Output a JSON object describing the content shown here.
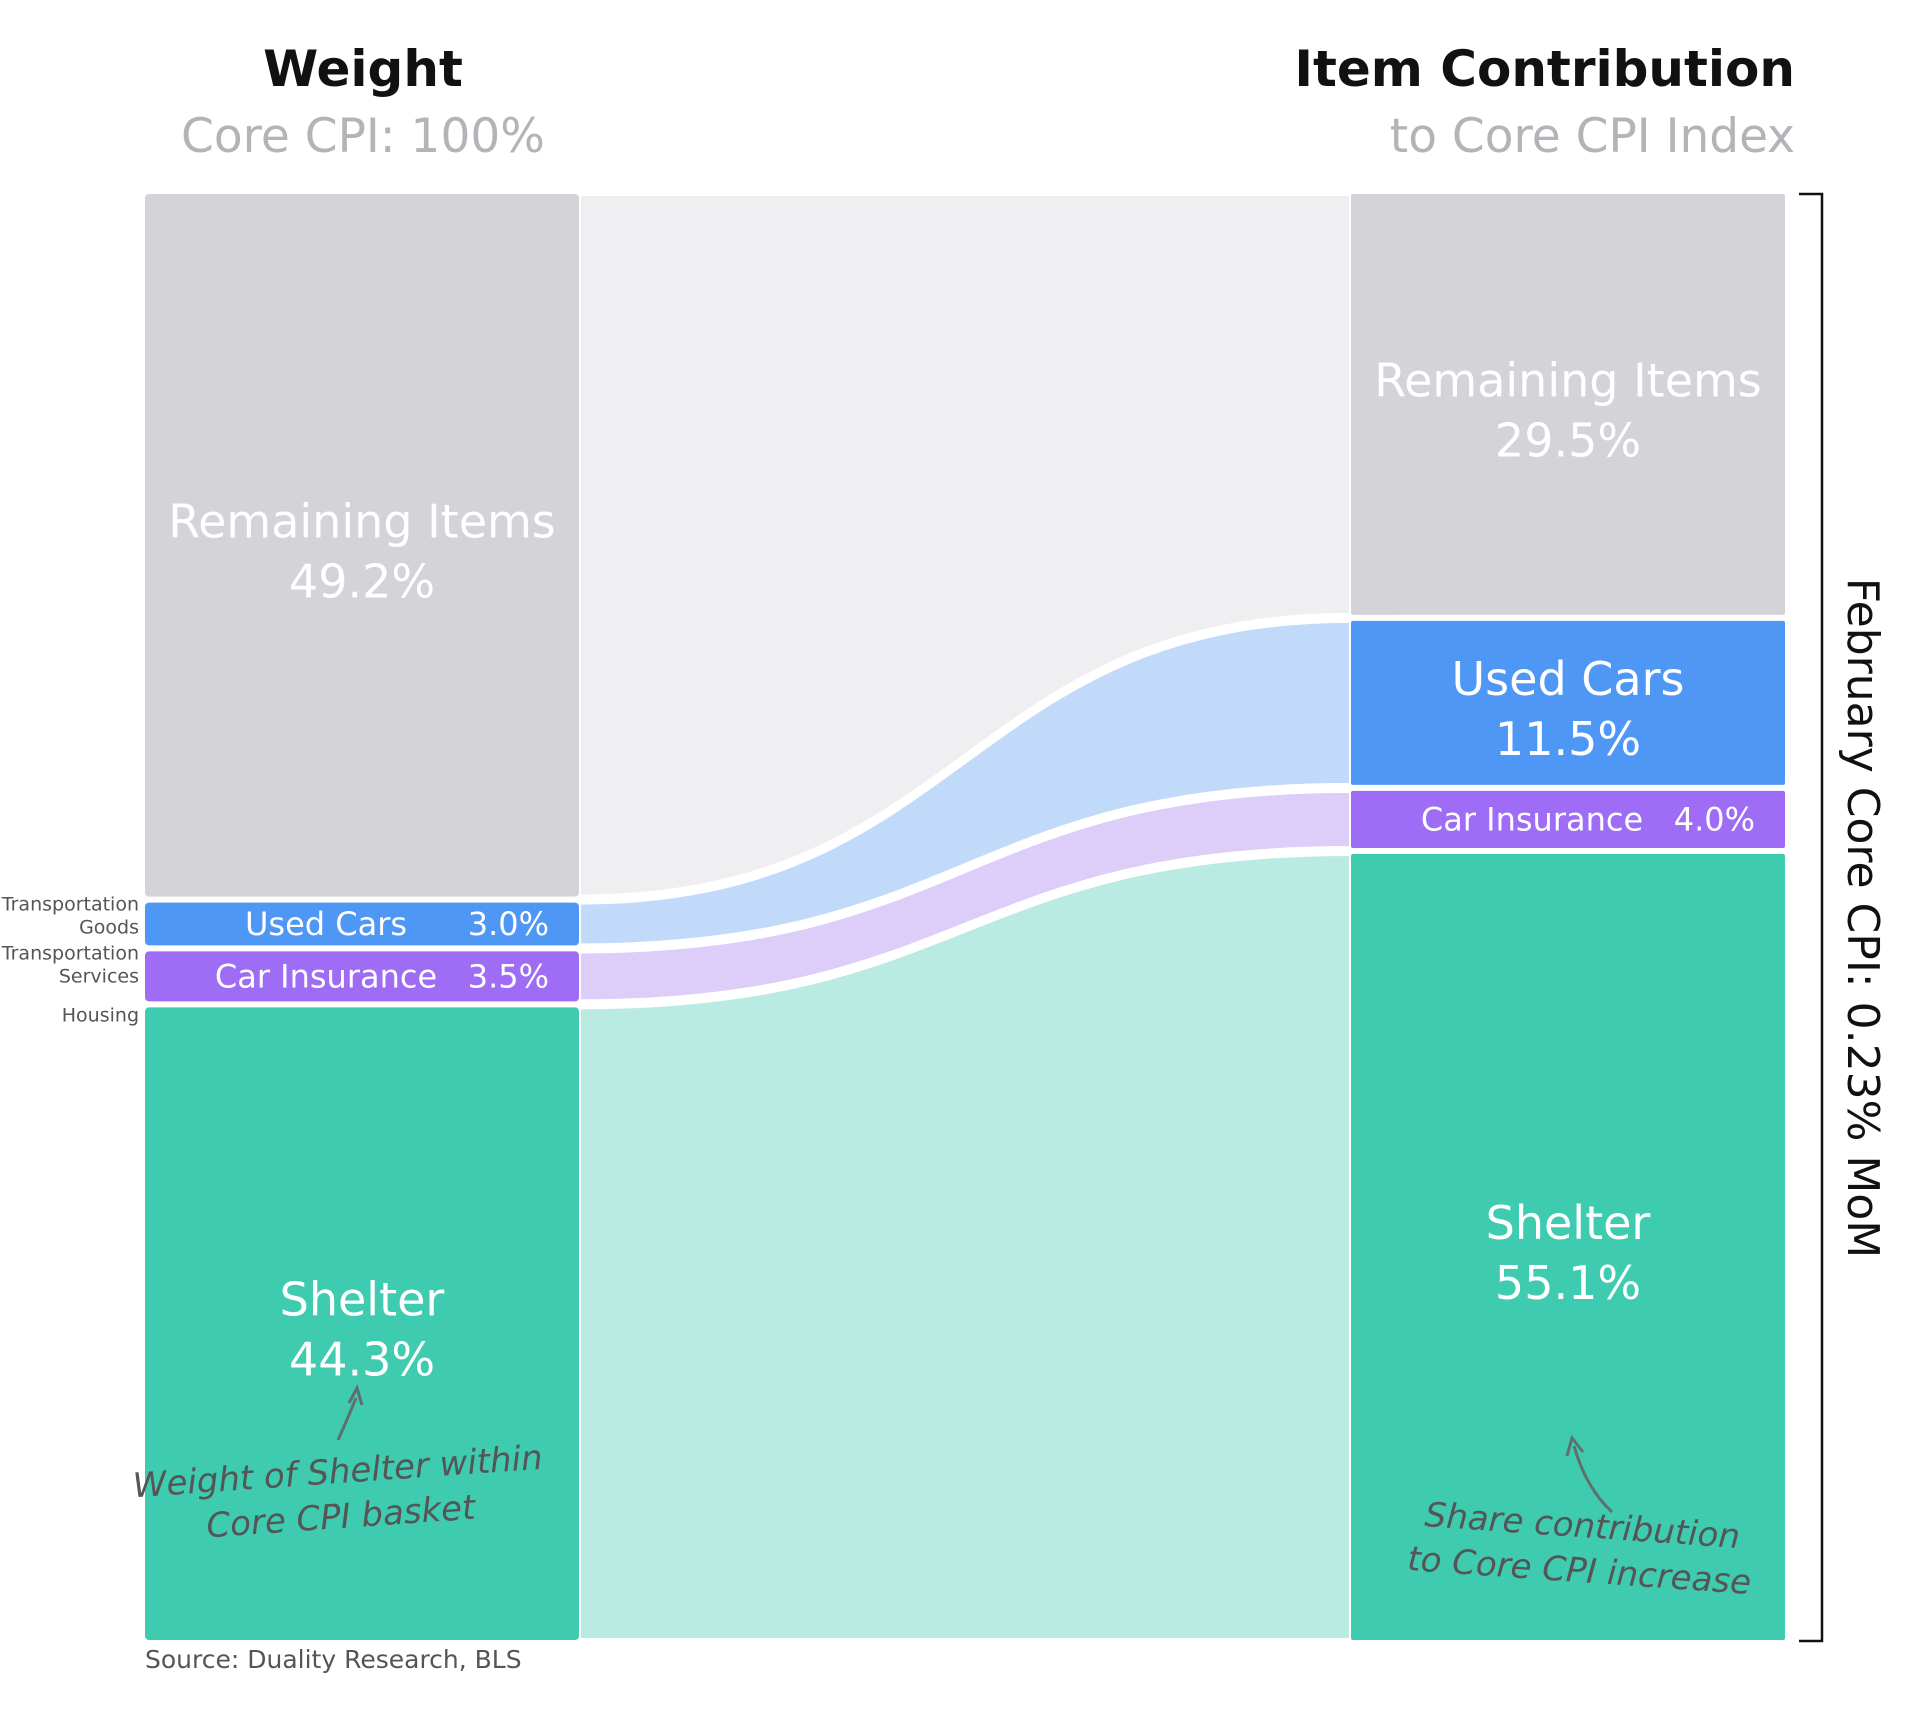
{
  "chart_data": {
    "type": "sankey",
    "left_title": "Weight",
    "left_subtitle": "Core CPI: 100%",
    "right_title": "Item Contribution",
    "right_subtitle": "to Core CPI Index",
    "bracket_label": "February Core CPI: 0.23% MoM",
    "source": "Source: Duality Research, BLS",
    "colors": {
      "remaining": "#d3d3d8",
      "remaining_flow": "#efeff1",
      "used_cars": "#4f97f5",
      "used_cars_flow": "#c2dafa",
      "car_insurance": "#9e6cf5",
      "car_insurance_flow": "#ddcdf9",
      "shelter": "#3ecbb0",
      "shelter_flow": "#b9ebe2"
    },
    "nodes": [
      {
        "key": "remaining",
        "name": "Remaining Items",
        "weight": 49.2,
        "weight_label": "49.2%",
        "contribution": 29.5,
        "contribution_label": "29.5%"
      },
      {
        "key": "used_cars",
        "name": "Used Cars",
        "weight": 3.0,
        "weight_label": "3.0%",
        "contribution": 11.5,
        "contribution_label": "11.5%"
      },
      {
        "key": "car_insurance",
        "name": "Car Insurance",
        "weight": 3.5,
        "weight_label": "3.5%",
        "contribution": 4.0,
        "contribution_label": "4.0%"
      },
      {
        "key": "shelter",
        "name": "Shelter",
        "weight": 44.3,
        "weight_label": "44.3%",
        "contribution": 55.1,
        "contribution_label": "55.1%"
      }
    ],
    "category_labels": [
      {
        "key": "used_cars",
        "lines": [
          "Transportation",
          "Goods"
        ]
      },
      {
        "key": "car_insurance",
        "lines": [
          "Transportation",
          "Services"
        ]
      },
      {
        "key": "shelter",
        "lines": [
          "Housing"
        ]
      }
    ],
    "annotations": {
      "left": [
        "Weight of Shelter within",
        "Core CPI basket"
      ],
      "right": [
        "Share contribution",
        "to Core CPI increase"
      ]
    }
  }
}
